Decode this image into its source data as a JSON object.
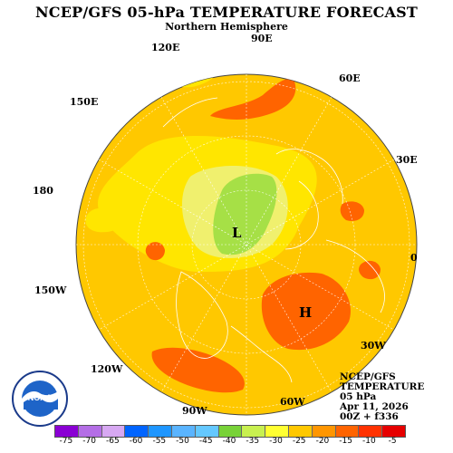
{
  "title": "NCEP/GFS 05-hPa TEMPERATURE FORECAST",
  "subtitle": "Northern Hemisphere",
  "longitude_labels": [
    "90E",
    "120E",
    "60E",
    "150E",
    "30E",
    "180",
    "0",
    "150W",
    "30W",
    "120W",
    "60W",
    "90W"
  ],
  "pressure_labels": [
    {
      "text": "L"
    },
    {
      "text": "H"
    }
  ],
  "info": {
    "model": "NCEP/GFS",
    "field": "TEMPERATURE",
    "level": "05 hPa",
    "date": "Apr 11, 2026",
    "run": "00Z + f336"
  },
  "logo": {
    "name": "NOAA",
    "text": "NOAA"
  },
  "legend": {
    "values": [
      "-75",
      "-70",
      "-65",
      "-60",
      "-55",
      "-50",
      "-45",
      "-40",
      "-35",
      "-30",
      "-25",
      "-20",
      "-15",
      "-10",
      "-5"
    ],
    "colors": [
      "#8a00d4",
      "#b46ee6",
      "#d7a8f2",
      "#0064ff",
      "#1e96ff",
      "#5ab4ff",
      "#64c8ff",
      "#78d238",
      "#c8f050",
      "#ffff32",
      "#ffc800",
      "#ff9600",
      "#ff6400",
      "#ff3200",
      "#e60000"
    ]
  },
  "colors": {
    "background_field": "#ffc800",
    "warm_patch": "#ff6400",
    "cool_center": "#c8f050",
    "coast": "#ffffff"
  }
}
